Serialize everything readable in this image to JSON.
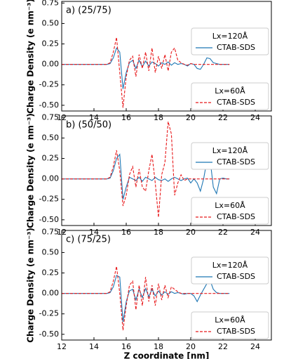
{
  "chart_data": [
    {
      "type": "line",
      "annotation": "a) (25/75)",
      "ylabel": "Charge Density (e nm⁻³)",
      "xlim": [
        12,
        25
      ],
      "xticks": [
        12,
        14,
        16,
        18,
        20,
        22,
        24
      ],
      "ylim": [
        -0.57,
        0.77
      ],
      "yticks": [
        {
          "value": -0.5,
          "label": "-0.50"
        },
        -0.25,
        {
          "value": 0,
          "label": "0.00"
        },
        0.25,
        {
          "value": 0.5,
          "label": "0.50"
        },
        0.75
      ],
      "x": [
        12,
        14.8,
        15.0,
        15.2,
        15.4,
        15.6,
        15.8,
        16.0,
        16.2,
        16.4,
        16.6,
        16.8,
        17.0,
        17.2,
        17.4,
        17.6,
        17.8,
        18.0,
        18.2,
        18.4,
        18.6,
        18.8,
        19.0,
        19.2,
        19.4,
        19.6,
        19.8,
        20.0,
        20.2,
        20.4,
        20.6,
        20.8,
        21.0,
        21.2,
        21.4,
        21.6,
        21.8,
        22.0,
        22.2,
        22.4
      ],
      "series": [
        {
          "name": "CTAB-SDS",
          "legend_title": "Lx=120Å",
          "legend": "upper right",
          "color": "#1f77b4",
          "dashed": false,
          "values": [
            0,
            0,
            0.01,
            0.08,
            0.2,
            0.15,
            -0.3,
            -0.1,
            0.02,
            0.05,
            -0.05,
            0.05,
            -0.03,
            0.04,
            -0.02,
            0.03,
            0.01,
            -0.02,
            0.02,
            0,
            0.03,
            -0.01,
            0.02,
            0,
            0.01,
            0,
            -0.02,
            0.01,
            0,
            -0.05,
            -0.06,
            0,
            0.08,
            0.07,
            0.02,
            0.01,
            0,
            0,
            0,
            0
          ]
        },
        {
          "name": "CTAB-SDS",
          "legend_title": "Lx=60Å",
          "legend": "lower right",
          "color": "#e8191b",
          "dashed": true,
          "values": [
            0,
            0,
            0.02,
            0.15,
            0.33,
            -0.1,
            -0.53,
            -0.15,
            0.05,
            0.1,
            -0.15,
            0.12,
            -0.05,
            0.15,
            -0.08,
            0.2,
            -0.1,
            0.1,
            -0.05,
            0.12,
            -0.08,
            0.15,
            0.2,
            0.05,
            0.02,
            0,
            -0.01,
            0.01,
            0,
            0,
            0,
            0,
            0,
            0,
            0,
            0,
            0,
            0,
            0,
            0
          ]
        }
      ]
    },
    {
      "type": "line",
      "annotation": "b) (50/50)",
      "ylabel": "Charge Density (e nm⁻³)",
      "xlim": [
        12,
        25
      ],
      "xticks": [
        12,
        14,
        16,
        18,
        20,
        22,
        24
      ],
      "ylim": [
        -0.57,
        0.77
      ],
      "yticks": [
        {
          "value": -0.5,
          "label": "-0.50"
        },
        -0.25,
        {
          "value": 0,
          "label": "0.00"
        },
        0.25,
        {
          "value": 0.5,
          "label": "0.50"
        },
        0.75
      ],
      "x": [
        12,
        14.8,
        15.0,
        15.2,
        15.4,
        15.6,
        15.8,
        16.0,
        16.2,
        16.4,
        16.6,
        16.8,
        17.0,
        17.2,
        17.4,
        17.6,
        17.8,
        18.0,
        18.2,
        18.4,
        18.6,
        18.8,
        19.0,
        19.2,
        19.4,
        19.6,
        19.8,
        20.0,
        20.2,
        20.4,
        20.6,
        20.8,
        21.0,
        21.2,
        21.4,
        21.6,
        21.8,
        22.0,
        22.2,
        22.4
      ],
      "series": [
        {
          "name": "CTAB-SDS",
          "legend_title": "Lx=120Å",
          "legend": "upper right",
          "color": "#1f77b4",
          "dashed": false,
          "values": [
            0,
            0,
            0.01,
            0.1,
            0.25,
            0.3,
            -0.25,
            -0.1,
            0.02,
            0,
            -0.02,
            0.02,
            -0.03,
            0.02,
            0,
            -0.02,
            0.02,
            -0.01,
            -0.02,
            0,
            -0.03,
            0,
            0.02,
            0,
            -0.02,
            0,
            0.01,
            -0.05,
            0,
            -0.05,
            -0.15,
            0,
            0.22,
            0.24,
            -0.1,
            -0.18,
            0,
            0.01,
            0,
            0
          ]
        },
        {
          "name": "CTAB-SDS",
          "legend_title": "Lx=60Å",
          "legend": "lower right",
          "color": "#e8191b",
          "dashed": true,
          "values": [
            0,
            0,
            0.02,
            0.15,
            0.35,
            0.1,
            -0.33,
            -0.2,
            0.05,
            0.15,
            -0.1,
            0.12,
            -0.1,
            -0.15,
            0.1,
            0.3,
            -0.05,
            -0.47,
            0.05,
            0.2,
            0.7,
            0.55,
            -0.2,
            -0.05,
            0.05,
            -0.02,
            0,
            0,
            0,
            0,
            0,
            0,
            0,
            0,
            0,
            0,
            0,
            0,
            0,
            0
          ]
        }
      ]
    },
    {
      "type": "line",
      "annotation": "c) (75/25)",
      "ylabel": "Charge Density (e nm⁻³)",
      "xlabel": "Z  coordinate [nm]",
      "xlim": [
        12,
        25
      ],
      "xticks": [
        12,
        14,
        16,
        18,
        20,
        22,
        24
      ],
      "ylim": [
        -0.57,
        0.77
      ],
      "yticks": [
        {
          "value": -0.5,
          "label": "-0.50"
        },
        -0.25,
        {
          "value": 0,
          "label": "0.00"
        },
        0.25,
        {
          "value": 0.5,
          "label": "0.50"
        },
        0.75
      ],
      "x": [
        12,
        14.8,
        15.0,
        15.2,
        15.4,
        15.6,
        15.8,
        16.0,
        16.2,
        16.4,
        16.6,
        16.8,
        17.0,
        17.2,
        17.4,
        17.6,
        17.8,
        18.0,
        18.2,
        18.4,
        18.6,
        18.8,
        19.0,
        19.2,
        19.4,
        19.6,
        19.8,
        20.0,
        20.2,
        20.4,
        20.6,
        20.8,
        21.0,
        21.2,
        21.4,
        21.6,
        21.8,
        22.0,
        22.2,
        22.4
      ],
      "series": [
        {
          "name": "CTAB-SDS",
          "legend_title": "Lx=120Å",
          "legend": "upper right",
          "color": "#1f77b4",
          "dashed": false,
          "values": [
            0,
            0,
            0.01,
            0.08,
            0.22,
            0.2,
            -0.35,
            -0.1,
            0.03,
            0.05,
            -0.08,
            0.05,
            -0.05,
            0.06,
            -0.04,
            0.05,
            -0.03,
            0.03,
            -0.02,
            0.02,
            -0.01,
            0.02,
            0,
            0.01,
            0,
            -0.01,
            0,
            0,
            -0.03,
            -0.1,
            -0.02,
            0.05,
            0.12,
            0.16,
            0.05,
            0.01,
            0,
            0,
            0,
            0
          ]
        },
        {
          "name": "CTAB-SDS",
          "legend_title": "Lx=60Å",
          "legend": "lower right",
          "color": "#e8191b",
          "dashed": true,
          "values": [
            0,
            0,
            0.02,
            0.15,
            0.33,
            0,
            -0.45,
            -0.15,
            0.1,
            0.15,
            -0.2,
            0.1,
            -0.15,
            0.2,
            -0.1,
            0.1,
            -0.15,
            0.12,
            -0.08,
            0.1,
            -0.05,
            0.08,
            0.05,
            0.02,
            0,
            0,
            0,
            0,
            0,
            0,
            0,
            0,
            0,
            0,
            0,
            0,
            0,
            0,
            0,
            0
          ]
        }
      ]
    }
  ]
}
